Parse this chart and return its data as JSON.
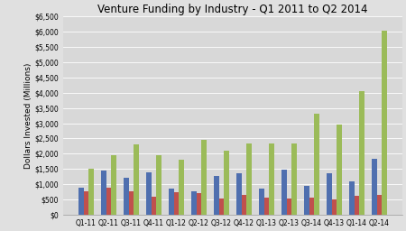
{
  "title": "Venture Funding by Industry - Q1 2011 to Q2 2014",
  "xlabel": "",
  "ylabel": "Dollars Invested (Millions)",
  "categories": [
    "Q1-11",
    "Q2-11",
    "Q3-11",
    "Q4-11",
    "Q1-12",
    "Q2-12",
    "Q3-12",
    "Q4-12",
    "Q1-13",
    "Q2-13",
    "Q3-14",
    "Q4-13",
    "Q1-14",
    "Q2-14"
  ],
  "blue_values": [
    900,
    1450,
    1200,
    1380,
    870,
    760,
    1280,
    1360,
    850,
    1480,
    960,
    1360,
    1100,
    1820
  ],
  "red_values": [
    780,
    900,
    770,
    580,
    750,
    720,
    530,
    650,
    570,
    530,
    550,
    510,
    620,
    660
  ],
  "green_values": [
    1500,
    1950,
    2300,
    1950,
    1800,
    2450,
    2100,
    2350,
    2350,
    2350,
    3300,
    2950,
    4050,
    6050
  ],
  "bar_colors": [
    "#4f6faf",
    "#c0504d",
    "#9bbb59"
  ],
  "ylim": [
    0,
    6500
  ],
  "ytick_values": [
    0,
    500,
    1000,
    1500,
    2000,
    2500,
    3000,
    3500,
    4000,
    4500,
    5000,
    5500,
    6000,
    6500
  ],
  "background_color": "#e0e0e0",
  "plot_area_color": "#d8d8d8",
  "title_fontsize": 8.5,
  "ylabel_fontsize": 6.5,
  "tick_fontsize": 5.5,
  "bar_width": 0.22
}
